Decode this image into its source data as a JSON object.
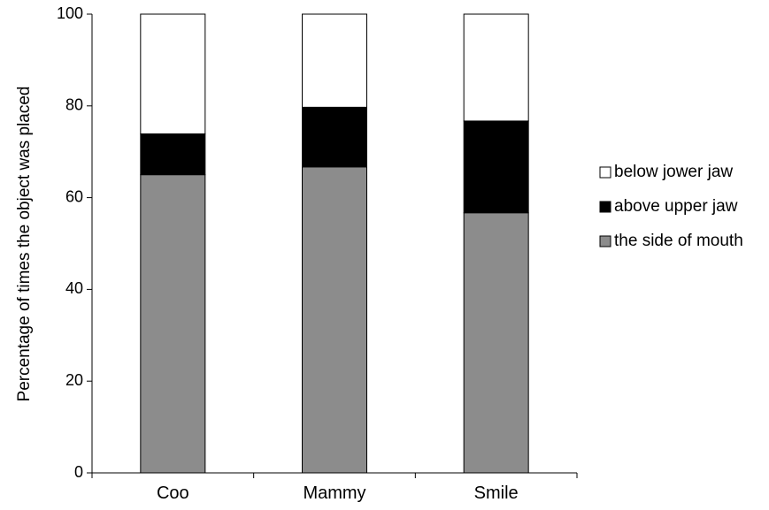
{
  "chart_data": {
    "type": "bar",
    "stacked": true,
    "categories": [
      "Coo",
      "Mammy",
      "Smile"
    ],
    "series": [
      {
        "name": "the side of mouth",
        "values": [
          65,
          66.7,
          56.7
        ],
        "color": "#8c8c8c"
      },
      {
        "name": "above upper jaw",
        "values": [
          8.9,
          13,
          20
        ],
        "color": "#000000"
      },
      {
        "name": "below jower jaw",
        "values": [
          26.1,
          20.3,
          23.3
        ],
        "color": "#ffffff"
      }
    ],
    "legend_order": [
      "below jower jaw",
      "above upper jaw",
      "the side of mouth"
    ],
    "ylabel": "Percentage of times the object was placed",
    "xlabel": "",
    "ylim": [
      0,
      100
    ],
    "yticks": [
      "0",
      "20",
      "40",
      "60",
      "80",
      "100"
    ],
    "grid": false,
    "legend_position": "right"
  }
}
